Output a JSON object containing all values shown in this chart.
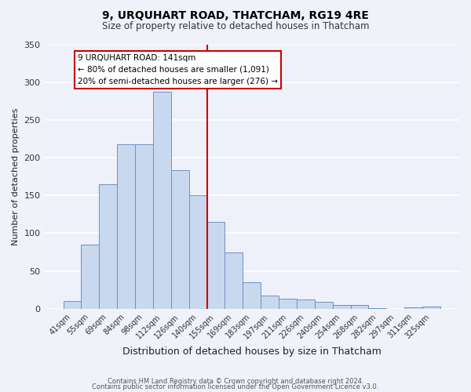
{
  "title": "9, URQUHART ROAD, THATCHAM, RG19 4RE",
  "subtitle": "Size of property relative to detached houses in Thatcham",
  "xlabel": "Distribution of detached houses by size in Thatcham",
  "ylabel": "Number of detached properties",
  "bar_color": "#c8d8ee",
  "bar_edge_color": "#7090c0",
  "bg_color": "#eef1fa",
  "grid_color": "#ffffff",
  "categories": [
    "41sqm",
    "55sqm",
    "69sqm",
    "84sqm",
    "98sqm",
    "112sqm",
    "126sqm",
    "140sqm",
    "155sqm",
    "169sqm",
    "183sqm",
    "197sqm",
    "211sqm",
    "226sqm",
    "240sqm",
    "254sqm",
    "268sqm",
    "282sqm",
    "297sqm",
    "311sqm",
    "325sqm"
  ],
  "values": [
    10,
    85,
    165,
    218,
    218,
    287,
    184,
    150,
    115,
    75,
    35,
    18,
    13,
    12,
    9,
    5,
    5,
    1,
    0,
    2,
    3
  ],
  "ylim": [
    0,
    350
  ],
  "yticks": [
    0,
    50,
    100,
    150,
    200,
    250,
    300,
    350
  ],
  "marker_label_line1": "9 URQUHART ROAD: 141sqm",
  "marker_label_line2": "← 80% of detached houses are smaller (1,091)",
  "marker_label_line3": "20% of semi-detached houses are larger (276) →",
  "annotation_box_color": "#cc0000",
  "footer_line1": "Contains HM Land Registry data © Crown copyright and database right 2024.",
  "footer_line2": "Contains public sector information licensed under the Open Government Licence v3.0."
}
